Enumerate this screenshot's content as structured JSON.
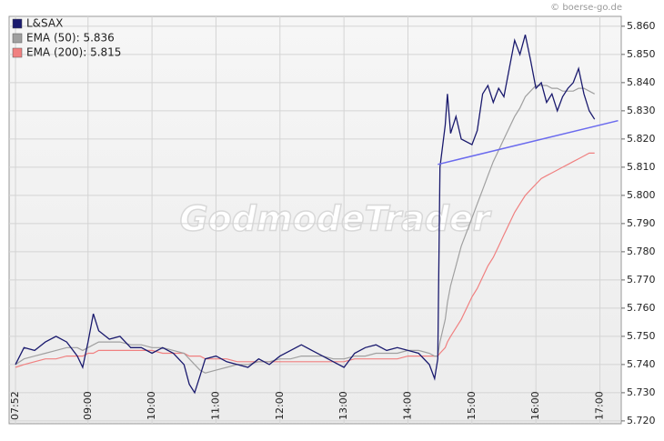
{
  "chart_data": {
    "type": "line",
    "source": "© boerse-go.de",
    "watermark": "GodmodeTrader",
    "x": [
      472,
      480,
      490,
      500,
      510,
      520,
      530,
      535,
      540,
      545,
      550,
      560,
      570,
      580,
      590,
      600,
      610,
      620,
      630,
      635,
      640,
      645,
      650,
      660,
      670,
      680,
      690,
      700,
      710,
      720,
      730,
      740,
      750,
      760,
      770,
      780,
      790,
      800,
      810,
      820,
      830,
      840,
      850,
      860,
      865,
      868,
      870,
      875,
      877,
      880,
      885,
      890,
      900,
      905,
      910,
      915,
      920,
      925,
      930,
      935,
      940,
      945,
      950,
      955,
      960,
      965,
      970,
      975,
      980,
      985,
      990,
      995,
      1000,
      1005,
      1010,
      1015
    ],
    "series": [
      {
        "name": "L&SAX",
        "color": "#1a1a6e",
        "values": [
          5.74,
          5.746,
          5.745,
          5.748,
          5.75,
          5.748,
          5.743,
          5.739,
          5.748,
          5.758,
          5.752,
          5.749,
          5.75,
          5.746,
          5.746,
          5.744,
          5.746,
          5.744,
          5.74,
          5.733,
          5.73,
          5.736,
          5.742,
          5.743,
          5.741,
          5.74,
          5.739,
          5.742,
          5.74,
          5.743,
          5.745,
          5.747,
          5.745,
          5.743,
          5.741,
          5.739,
          5.744,
          5.746,
          5.747,
          5.745,
          5.746,
          5.745,
          5.744,
          5.74,
          5.735,
          5.742,
          5.81,
          5.825,
          5.836,
          5.822,
          5.828,
          5.82,
          5.818,
          5.823,
          5.836,
          5.839,
          5.833,
          5.838,
          5.835,
          5.845,
          5.855,
          5.85,
          5.857,
          5.848,
          5.838,
          5.84,
          5.833,
          5.836,
          5.83,
          5.835,
          5.838,
          5.84,
          5.845,
          5.836,
          5.83,
          5.827
        ]
      },
      {
        "name": "EMA (50): 5.836",
        "color": "#a0a0a0",
        "values": [
          5.74,
          5.742,
          5.743,
          5.744,
          5.745,
          5.746,
          5.746,
          5.745,
          5.746,
          5.747,
          5.748,
          5.748,
          5.748,
          5.747,
          5.747,
          5.746,
          5.746,
          5.745,
          5.744,
          5.742,
          5.74,
          5.738,
          5.737,
          5.738,
          5.739,
          5.74,
          5.74,
          5.741,
          5.741,
          5.742,
          5.742,
          5.743,
          5.743,
          5.743,
          5.742,
          5.742,
          5.743,
          5.743,
          5.744,
          5.744,
          5.744,
          5.745,
          5.745,
          5.744,
          5.743,
          5.743,
          5.748,
          5.756,
          5.762,
          5.768,
          5.775,
          5.782,
          5.792,
          5.797,
          5.802,
          5.807,
          5.812,
          5.816,
          5.82,
          5.824,
          5.828,
          5.831,
          5.835,
          5.837,
          5.839,
          5.839,
          5.839,
          5.838,
          5.838,
          5.837,
          5.837,
          5.837,
          5.838,
          5.838,
          5.837,
          5.836
        ]
      },
      {
        "name": "EMA (200): 5.815",
        "color": "#f08080",
        "values": [
          5.739,
          5.74,
          5.741,
          5.742,
          5.742,
          5.743,
          5.743,
          5.743,
          5.744,
          5.744,
          5.745,
          5.745,
          5.745,
          5.745,
          5.745,
          5.745,
          5.744,
          5.744,
          5.744,
          5.743,
          5.743,
          5.743,
          5.742,
          5.742,
          5.742,
          5.741,
          5.741,
          5.741,
          5.741,
          5.741,
          5.741,
          5.741,
          5.741,
          5.741,
          5.741,
          5.741,
          5.742,
          5.742,
          5.742,
          5.742,
          5.742,
          5.743,
          5.743,
          5.743,
          5.743,
          5.743,
          5.744,
          5.746,
          5.748,
          5.75,
          5.753,
          5.756,
          5.764,
          5.767,
          5.771,
          5.775,
          5.778,
          5.782,
          5.786,
          5.79,
          5.794,
          5.797,
          5.8,
          5.802,
          5.804,
          5.806,
          5.807,
          5.808,
          5.809,
          5.81,
          5.811,
          5.812,
          5.813,
          5.814,
          5.815,
          5.815
        ]
      }
    ],
    "trendline": {
      "x": [
        868,
        1037
      ],
      "values": [
        5.811,
        5.8265
      ],
      "color": "#6a6aee"
    },
    "xlim": [
      466,
      1040
    ],
    "xticks": [
      {
        "value": 472,
        "label": "07:52"
      },
      {
        "value": 540,
        "label": "09:00"
      },
      {
        "value": 600,
        "label": "10:00"
      },
      {
        "value": 660,
        "label": "11:00"
      },
      {
        "value": 720,
        "label": "12:00"
      },
      {
        "value": 780,
        "label": "13:00"
      },
      {
        "value": 840,
        "label": "14:00"
      },
      {
        "value": 900,
        "label": "15:00"
      },
      {
        "value": 960,
        "label": "16:00"
      },
      {
        "value": 1020,
        "label": "17:00"
      }
    ],
    "ylim": [
      5.719,
      5.8635
    ],
    "yticks": [
      {
        "value": 5.72,
        "label": "5.720"
      },
      {
        "value": 5.73,
        "label": "5.730"
      },
      {
        "value": 5.74,
        "label": "5.740"
      },
      {
        "value": 5.75,
        "label": "5.750"
      },
      {
        "value": 5.76,
        "label": "5.760"
      },
      {
        "value": 5.77,
        "label": "5.770"
      },
      {
        "value": 5.78,
        "label": "5.780"
      },
      {
        "value": 5.79,
        "label": "5.790"
      },
      {
        "value": 5.8,
        "label": "5.800"
      },
      {
        "value": 5.81,
        "label": "5.810"
      },
      {
        "value": 5.82,
        "label": "5.820"
      },
      {
        "value": 5.83,
        "label": "5.830"
      },
      {
        "value": 5.84,
        "label": "5.840"
      },
      {
        "value": 5.85,
        "label": "5.850"
      },
      {
        "value": 5.86,
        "label": "5.860"
      }
    ],
    "grid": true,
    "legend": "upper left"
  }
}
